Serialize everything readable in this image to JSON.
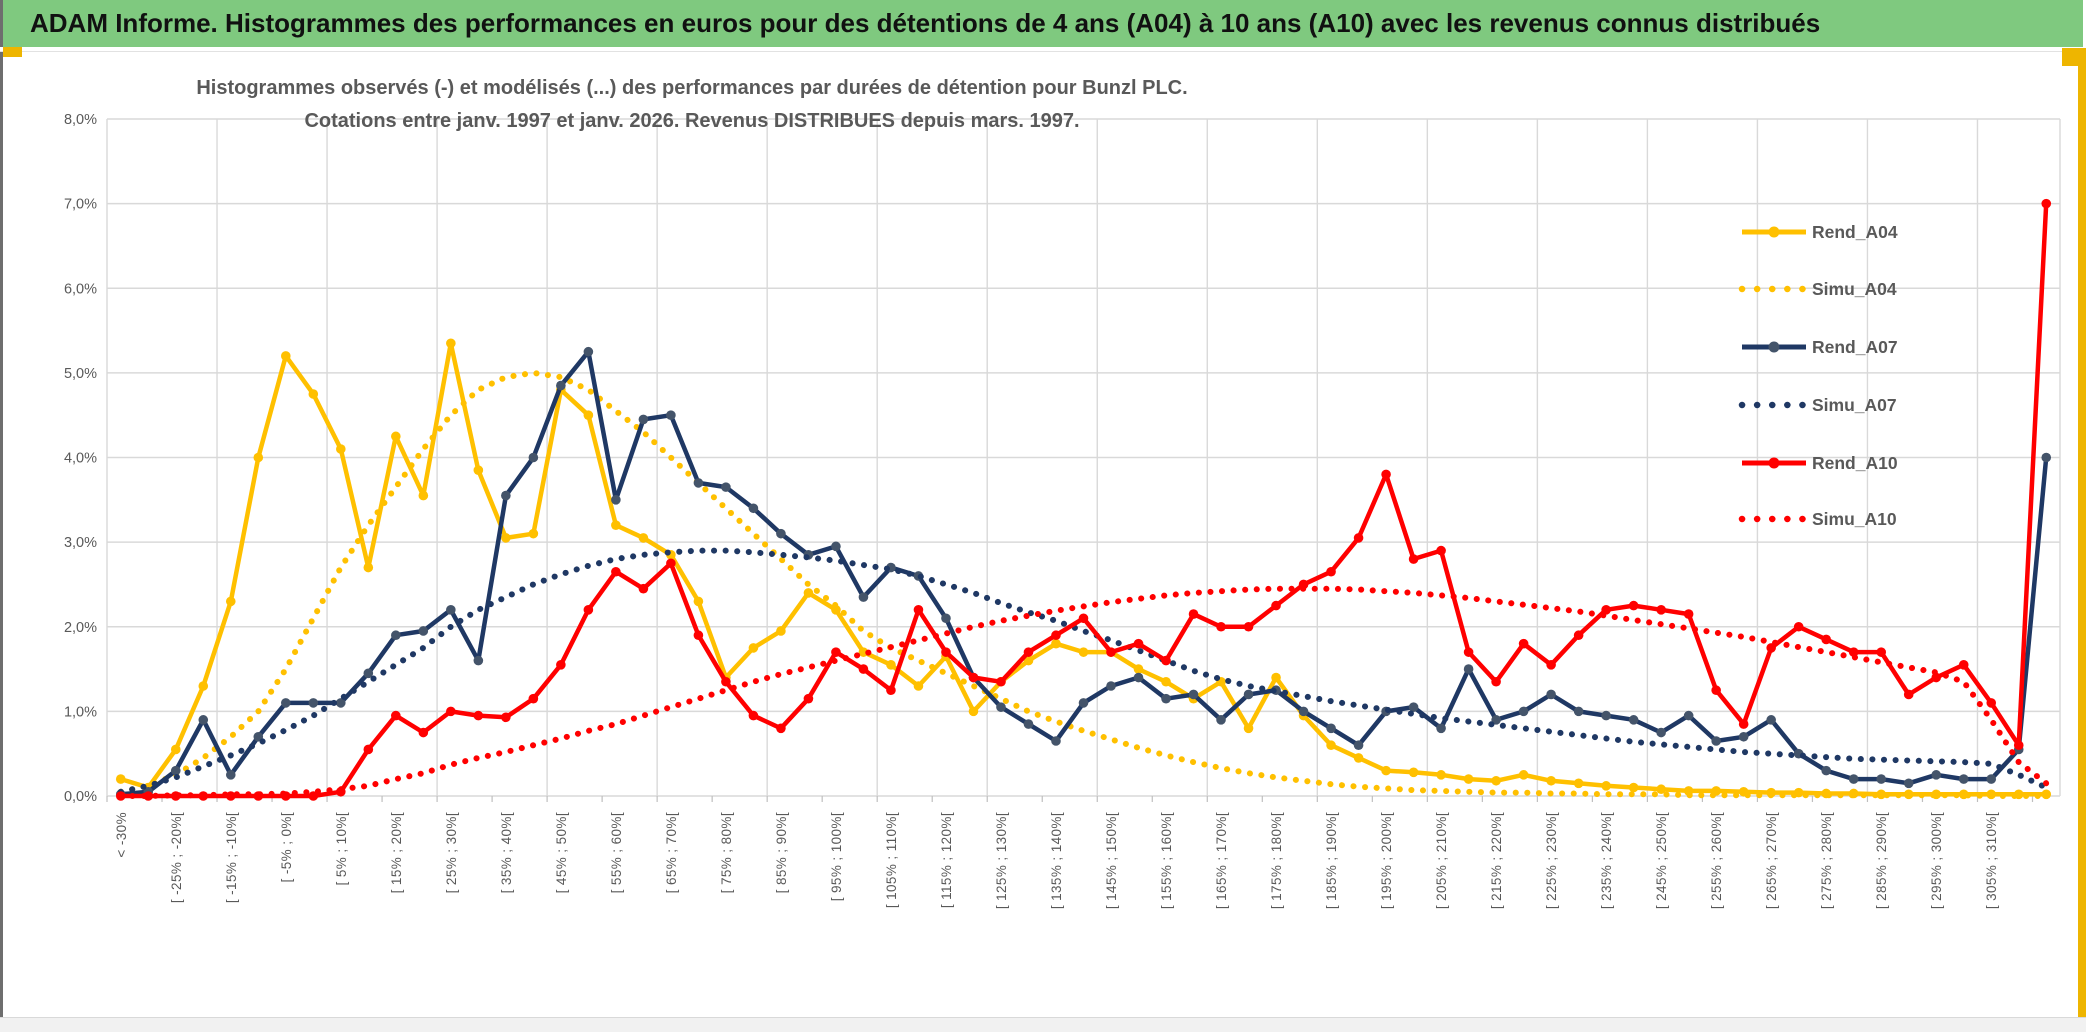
{
  "window": {
    "title": "ADAM Informe. Histogrammes des performances en euros pour des détentions de 4 ans (A04) à 10 ans (A10) avec les revenus connus distribués"
  },
  "accent_colors": {
    "titlebar_green": "#7fc97f",
    "edge_gold": "#eeb500",
    "text_dark_gray": "#595959",
    "gridline": "#d9d9d9"
  },
  "chart_data": {
    "type": "line",
    "title": "Histogrammes observés (-) et modélisés (...) des performances par durées de détention pour Bunzl PLC.",
    "subtitle": "Cotations entre janv. 1997 et janv. 2026. Revenus DISTRIBUES depuis mars. 1997.",
    "grid": true,
    "legend_position": "right-inside",
    "ylim": [
      0,
      8
    ],
    "ytick_step": 1,
    "ytick_labels": [
      "0,0%",
      "1,0%",
      "2,0%",
      "3,0%",
      "4,0%",
      "5,0%",
      "6,0%",
      "7,0%",
      "8,0%"
    ],
    "bin_count": 71,
    "note": "71 histogram bins of 5% width; axis labels shown on every other bin (even indices 0..68); last two bins unlabeled; final bin holds the terminal spike",
    "x_tick_labels": [
      "< -30%",
      "[ -25% ; -20%[",
      "[ -15% ; -10%[",
      "[ -5% ; 0%[",
      "[ 5% ; 10%[",
      "[ 15% ; 20%[",
      "[ 25% ; 30%[",
      "[ 35% ; 40%[",
      "[ 45% ; 50%[",
      "[ 55% ; 60%[",
      "[ 65% ; 70%[",
      "[ 75% ; 80%[",
      "[ 85% ; 90%[",
      "[ 95% ; 100%[",
      "[ 105% ; 110%[",
      "[ 115% ; 120%[",
      "[ 125% ; 130%[",
      "[ 135% ; 140%[",
      "[ 145% ; 150%[",
      "[ 155% ; 160%[",
      "[ 165% ; 170%[",
      "[ 175% ; 180%[",
      "[ 185% ; 190%[",
      "[ 195% ; 200%[",
      "[ 205% ; 210%[",
      "[ 215% ; 220%[",
      "[ 225% ; 230%[",
      "[ 235% ; 240%[",
      "[ 245% ; 250%[",
      "[ 255% ; 260%[",
      "[ 265% ; 270%[",
      "[ 275% ; 280%[",
      "[ 285% ; 290%[",
      "[ 295% ; 300%[",
      "[ 305% ; 310%["
    ],
    "series": [
      {
        "name": "Rend_A04",
        "color": "#FFC000",
        "marker_color": "#FFC000",
        "style": "solid",
        "values": [
          0.2,
          0.1,
          0.55,
          1.3,
          2.3,
          4.0,
          5.2,
          4.75,
          4.1,
          2.7,
          4.25,
          3.55,
          5.35,
          3.85,
          3.05,
          3.1,
          4.8,
          4.5,
          3.2,
          3.05,
          2.85,
          2.3,
          1.4,
          1.75,
          1.95,
          2.4,
          2.2,
          1.7,
          1.55,
          1.3,
          1.65,
          1.0,
          1.35,
          1.6,
          1.8,
          1.7,
          1.7,
          1.5,
          1.35,
          1.15,
          1.35,
          0.8,
          1.4,
          0.95,
          0.6,
          0.45,
          0.3,
          0.28,
          0.25,
          0.2,
          0.18,
          0.25,
          0.18,
          0.15,
          0.12,
          0.1,
          0.08,
          0.06,
          0.06,
          0.05,
          0.04,
          0.04,
          0.03,
          0.03,
          0.02,
          0.02,
          0.02,
          0.02,
          0.02,
          0.02,
          0.02
        ]
      },
      {
        "name": "Simu_A04",
        "color": "#FFC000",
        "style": "dotted",
        "values": [
          0.05,
          0.12,
          0.25,
          0.45,
          0.7,
          1.0,
          1.5,
          2.1,
          2.7,
          3.2,
          3.65,
          4.1,
          4.5,
          4.8,
          4.95,
          5.0,
          4.95,
          4.8,
          4.55,
          4.3,
          4.0,
          3.7,
          3.4,
          3.1,
          2.8,
          2.5,
          2.25,
          1.95,
          1.75,
          1.6,
          1.45,
          1.3,
          1.15,
          1.0,
          0.88,
          0.77,
          0.67,
          0.57,
          0.48,
          0.4,
          0.33,
          0.27,
          0.22,
          0.18,
          0.14,
          0.11,
          0.09,
          0.07,
          0.06,
          0.05,
          0.04,
          0.04,
          0.03,
          0.03,
          0.02,
          0.02,
          0.02,
          0.01,
          0.01,
          0.01,
          0.01,
          0.01,
          0.01,
          0.01,
          0.01,
          0.01,
          0.01,
          0.01,
          0.0,
          0.0,
          0.0
        ]
      },
      {
        "name": "Rend_A07",
        "color": "#1F3864",
        "marker_color": "#44546A",
        "style": "solid",
        "values": [
          0.02,
          0.05,
          0.3,
          0.9,
          0.25,
          0.7,
          1.1,
          1.1,
          1.1,
          1.45,
          1.9,
          1.95,
          2.2,
          1.6,
          3.55,
          4.0,
          4.85,
          5.25,
          3.5,
          4.45,
          4.5,
          3.7,
          3.65,
          3.4,
          3.1,
          2.85,
          2.95,
          2.35,
          2.7,
          2.6,
          2.1,
          1.4,
          1.05,
          0.85,
          0.65,
          1.1,
          1.3,
          1.4,
          1.15,
          1.2,
          0.9,
          1.2,
          1.25,
          1.0,
          0.8,
          0.6,
          1.0,
          1.05,
          0.8,
          1.5,
          0.9,
          1.0,
          1.2,
          1.0,
          0.95,
          0.9,
          0.75,
          0.95,
          0.65,
          0.7,
          0.9,
          0.5,
          0.3,
          0.2,
          0.2,
          0.15,
          0.25,
          0.2,
          0.2,
          0.55,
          4.0
        ]
      },
      {
        "name": "Simu_A07",
        "color": "#1F3864",
        "style": "dotted",
        "values": [
          0.05,
          0.12,
          0.22,
          0.35,
          0.48,
          0.62,
          0.78,
          0.95,
          1.15,
          1.35,
          1.55,
          1.75,
          2.0,
          2.2,
          2.35,
          2.5,
          2.62,
          2.72,
          2.8,
          2.85,
          2.88,
          2.9,
          2.9,
          2.88,
          2.85,
          2.82,
          2.78,
          2.73,
          2.68,
          2.6,
          2.5,
          2.4,
          2.28,
          2.17,
          2.07,
          1.95,
          1.84,
          1.72,
          1.6,
          1.48,
          1.38,
          1.3,
          1.24,
          1.18,
          1.12,
          1.07,
          1.02,
          0.97,
          0.92,
          0.88,
          0.84,
          0.8,
          0.76,
          0.72,
          0.68,
          0.64,
          0.61,
          0.58,
          0.55,
          0.52,
          0.5,
          0.48,
          0.46,
          0.44,
          0.43,
          0.42,
          0.41,
          0.4,
          0.38,
          0.25,
          0.1
        ]
      },
      {
        "name": "Rend_A10",
        "color": "#FF0000",
        "marker_color": "#FF0000",
        "style": "solid",
        "values": [
          0,
          0,
          0,
          0,
          0,
          0,
          0,
          0,
          0.05,
          0.55,
          0.95,
          0.75,
          1.0,
          0.95,
          0.93,
          1.15,
          1.55,
          2.2,
          2.65,
          2.45,
          2.75,
          1.9,
          1.35,
          0.95,
          0.8,
          1.15,
          1.7,
          1.5,
          1.25,
          2.2,
          1.7,
          1.4,
          1.35,
          1.7,
          1.9,
          2.1,
          1.7,
          1.8,
          1.6,
          2.15,
          2.0,
          2.0,
          2.25,
          2.5,
          2.65,
          3.05,
          3.8,
          2.8,
          2.9,
          1.7,
          1.35,
          1.8,
          1.55,
          1.9,
          2.2,
          2.25,
          2.2,
          2.15,
          1.25,
          0.85,
          1.75,
          2.0,
          1.85,
          1.7,
          1.7,
          1.2,
          1.4,
          1.55,
          1.1,
          0.6,
          7.0
        ]
      },
      {
        "name": "Simu_A10",
        "color": "#FF0000",
        "style": "dotted",
        "values": [
          0.0,
          0.0,
          0.01,
          0.01,
          0.02,
          0.02,
          0.03,
          0.05,
          0.08,
          0.12,
          0.2,
          0.27,
          0.37,
          0.45,
          0.52,
          0.6,
          0.68,
          0.77,
          0.85,
          0.95,
          1.05,
          1.15,
          1.25,
          1.35,
          1.44,
          1.52,
          1.6,
          1.68,
          1.76,
          1.84,
          1.92,
          2.0,
          2.07,
          2.13,
          2.19,
          2.24,
          2.29,
          2.33,
          2.37,
          2.4,
          2.42,
          2.44,
          2.45,
          2.45,
          2.45,
          2.44,
          2.42,
          2.4,
          2.37,
          2.34,
          2.3,
          2.26,
          2.22,
          2.18,
          2.13,
          2.08,
          2.03,
          1.98,
          1.93,
          1.88,
          1.82,
          1.76,
          1.7,
          1.64,
          1.58,
          1.52,
          1.46,
          1.35,
          0.9,
          0.4,
          0.15
        ]
      }
    ]
  },
  "legend": {
    "items": [
      {
        "label": "Rend_A04"
      },
      {
        "label": "Simu_A04"
      },
      {
        "label": "Rend_A07"
      },
      {
        "label": "Simu_A07"
      },
      {
        "label": "Rend_A10"
      },
      {
        "label": "Simu_A10"
      }
    ]
  }
}
